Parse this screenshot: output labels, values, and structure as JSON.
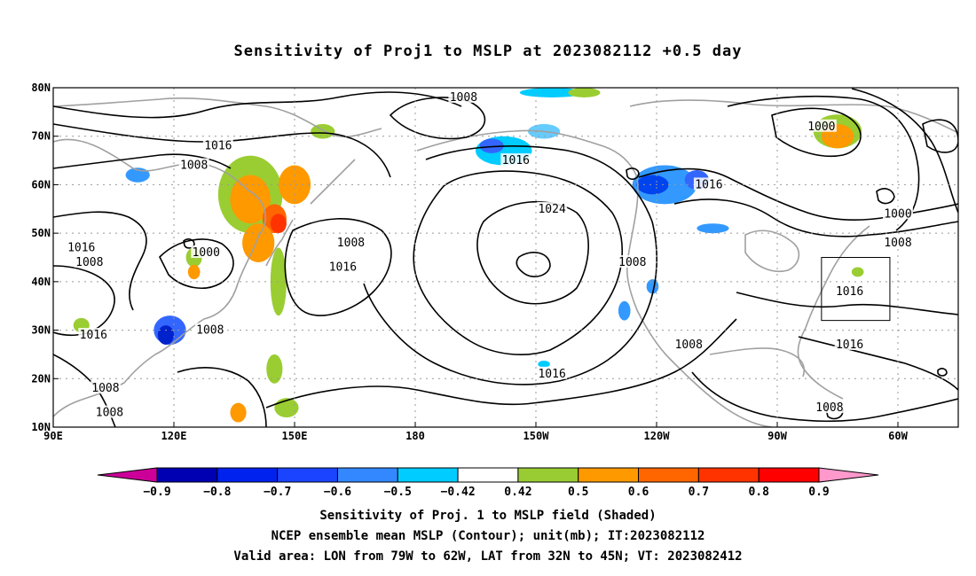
{
  "title": "Sensitivity of Proj1 to MSLP at 2023082112 +0.5 day",
  "map": {
    "lon_ticks": [
      {
        "lon": 90,
        "label": "90E"
      },
      {
        "lon": 120,
        "label": "120E"
      },
      {
        "lon": 150,
        "label": "150E"
      },
      {
        "lon": 180,
        "label": "180"
      },
      {
        "lon": 210,
        "label": "150W"
      },
      {
        "lon": 240,
        "label": "120W"
      },
      {
        "lon": 270,
        "label": "90W"
      },
      {
        "lon": 300,
        "label": "60W"
      }
    ],
    "lat_ticks": [
      {
        "lat": 80,
        "label": "80N"
      },
      {
        "lat": 70,
        "label": "70N"
      },
      {
        "lat": 60,
        "label": "60N"
      },
      {
        "lat": 50,
        "label": "50N"
      },
      {
        "lat": 40,
        "label": "40N"
      },
      {
        "lat": 30,
        "label": "30N"
      },
      {
        "lat": 20,
        "label": "20N"
      },
      {
        "lat": 10,
        "label": "10N"
      }
    ],
    "extent": {
      "lon_min": 90,
      "lon_max": 315,
      "lat_min": 10,
      "lat_max": 80
    },
    "grid": true,
    "valid_box": {
      "lon_min": 281,
      "lon_max": 298,
      "lat_min": 32,
      "lat_max": 45
    },
    "contour_labels": [
      {
        "text": "1008",
        "lon": 192,
        "lat": 78
      },
      {
        "text": "1016",
        "lon": 131,
        "lat": 68
      },
      {
        "text": "1008",
        "lon": 125,
        "lat": 64
      },
      {
        "text": "1000",
        "lon": 281,
        "lat": 72
      },
      {
        "text": "1016",
        "lon": 205,
        "lat": 65
      },
      {
        "text": "1016",
        "lon": 253,
        "lat": 60
      },
      {
        "text": "1024",
        "lon": 214,
        "lat": 55
      },
      {
        "text": "1008",
        "lon": 164,
        "lat": 48
      },
      {
        "text": "1016",
        "lon": 97,
        "lat": 47
      },
      {
        "text": "1008",
        "lon": 99,
        "lat": 44
      },
      {
        "text": "1000",
        "lon": 128,
        "lat": 46
      },
      {
        "text": "1016",
        "lon": 162,
        "lat": 43
      },
      {
        "text": "1008",
        "lon": 234,
        "lat": 44
      },
      {
        "text": "1000",
        "lon": 300,
        "lat": 54
      },
      {
        "text": "1008",
        "lon": 300,
        "lat": 48
      },
      {
        "text": "1016",
        "lon": 288,
        "lat": 38
      },
      {
        "text": "1016",
        "lon": 100,
        "lat": 29
      },
      {
        "text": "1008",
        "lon": 129,
        "lat": 30
      },
      {
        "text": "1008",
        "lon": 248,
        "lat": 27
      },
      {
        "text": "1016",
        "lon": 288,
        "lat": 27
      },
      {
        "text": "1016",
        "lon": 214,
        "lat": 21
      },
      {
        "text": "1008",
        "lon": 103,
        "lat": 18
      },
      {
        "text": "1008",
        "lon": 104,
        "lat": 13
      },
      {
        "text": "1008",
        "lon": 283,
        "lat": 14
      }
    ],
    "shaded_blobs": [
      {
        "lon": 139,
        "lat": 58,
        "rlon": 8,
        "rlat": 8,
        "color": "#9acd32"
      },
      {
        "lon": 139,
        "lat": 57,
        "rlon": 5,
        "rlat": 5,
        "color": "#ff9900"
      },
      {
        "lon": 145,
        "lat": 53,
        "rlon": 3,
        "rlat": 3,
        "color": "#ff6600"
      },
      {
        "lon": 146,
        "lat": 52,
        "rlon": 2,
        "rlat": 2,
        "color": "#ff3300"
      },
      {
        "lon": 141,
        "lat": 48,
        "rlon": 4,
        "rlat": 4,
        "color": "#ff9900"
      },
      {
        "lon": 150,
        "lat": 60,
        "rlon": 4,
        "rlat": 4,
        "color": "#ff9900"
      },
      {
        "lon": 146,
        "lat": 40,
        "rlon": 2,
        "rlat": 7,
        "color": "#9acd32"
      },
      {
        "lon": 148,
        "lat": 14,
        "rlon": 3,
        "rlat": 2,
        "color": "#9acd32"
      },
      {
        "lon": 136,
        "lat": 13,
        "rlon": 2,
        "rlat": 2,
        "color": "#ff9900"
      },
      {
        "lon": 145,
        "lat": 22,
        "rlon": 2,
        "rlat": 3,
        "color": "#9acd32"
      },
      {
        "lon": 157,
        "lat": 71,
        "rlon": 3,
        "rlat": 1.5,
        "color": "#9acd32"
      },
      {
        "lon": 119,
        "lat": 30,
        "rlon": 4,
        "rlat": 3,
        "color": "#3366ff"
      },
      {
        "lon": 118,
        "lat": 29,
        "rlon": 2,
        "rlat": 2,
        "color": "#0022cc"
      },
      {
        "lon": 111,
        "lat": 62,
        "rlon": 3,
        "rlat": 1.5,
        "color": "#3399ff"
      },
      {
        "lon": 97,
        "lat": 31,
        "rlon": 2,
        "rlat": 1.5,
        "color": "#9acd32"
      },
      {
        "lon": 125,
        "lat": 45,
        "rlon": 2,
        "rlat": 2,
        "color": "#9acd32"
      },
      {
        "lon": 125,
        "lat": 42,
        "rlon": 1.5,
        "rlat": 1.5,
        "color": "#ff9900"
      },
      {
        "lon": 242,
        "lat": 60,
        "rlon": 8,
        "rlat": 4,
        "color": "#3399ff"
      },
      {
        "lon": 239,
        "lat": 60,
        "rlon": 4,
        "rlat": 2,
        "color": "#0044ee"
      },
      {
        "lon": 250,
        "lat": 61,
        "rlon": 3,
        "rlat": 2,
        "color": "#3366ff"
      },
      {
        "lon": 202,
        "lat": 67,
        "rlon": 7,
        "rlat": 3,
        "color": "#00ccff"
      },
      {
        "lon": 199,
        "lat": 68,
        "rlon": 3,
        "rlat": 1.5,
        "color": "#3366ff"
      },
      {
        "lon": 212,
        "lat": 71,
        "rlon": 4,
        "rlat": 1.5,
        "color": "#66ccff"
      },
      {
        "lon": 214,
        "lat": 79,
        "rlon": 8,
        "rlat": 1,
        "color": "#00ccff"
      },
      {
        "lon": 222,
        "lat": 79,
        "rlon": 4,
        "rlat": 1,
        "color": "#9acd32"
      },
      {
        "lon": 232,
        "lat": 34,
        "rlon": 1.5,
        "rlat": 2,
        "color": "#3399ff"
      },
      {
        "lon": 239,
        "lat": 39,
        "rlon": 1.5,
        "rlat": 1.5,
        "color": "#3399ff"
      },
      {
        "lon": 254,
        "lat": 51,
        "rlon": 4,
        "rlat": 1,
        "color": "#3399ff"
      },
      {
        "lon": 285,
        "lat": 71,
        "rlon": 6,
        "rlat": 3.5,
        "color": "#9acd32"
      },
      {
        "lon": 285,
        "lat": 70,
        "rlon": 4,
        "rlat": 2.5,
        "color": "#ff9900"
      },
      {
        "lon": 290,
        "lat": 42,
        "rlon": 1.5,
        "rlat": 1,
        "color": "#9acd32"
      },
      {
        "lon": 212,
        "lat": 23,
        "rlon": 1.5,
        "rlat": 0.7,
        "color": "#00ccff"
      }
    ]
  },
  "colorbar": {
    "colors": [
      "#cc0099",
      "#0000b3",
      "#0022ee",
      "#1a44ff",
      "#3388ff",
      "#00ccff",
      "#ffffff",
      "#99cc33",
      "#ff9900",
      "#ff6600",
      "#ff3300",
      "#ff0000",
      "#ff99cc"
    ],
    "labels": [
      "−0.9",
      "−0.8",
      "−0.7",
      "−0.6",
      "−0.5",
      "−0.42",
      "0.42",
      "0.5",
      "0.6",
      "0.7",
      "0.8",
      "0.9"
    ]
  },
  "footer": {
    "line1": "Sensitivity of Proj. 1 to MSLP field (Shaded)",
    "line2": "NCEP ensemble mean MSLP (Contour); unit(mb); IT:2023082112",
    "line3": "Valid area: LON from 79W to 62W, LAT from 32N to 45N; VT: 2023082412"
  }
}
